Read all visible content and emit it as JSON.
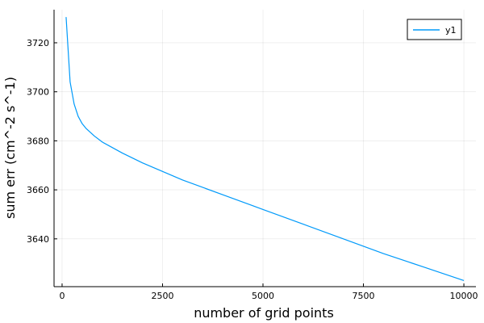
{
  "chart_data": {
    "type": "line",
    "title": "",
    "xlabel": "number of grid points",
    "ylabel": "sum err (cm^-2 s^-1)",
    "xlim": [
      -200,
      10300
    ],
    "ylim": [
      3620.5,
      3733.5
    ],
    "xticks": [
      0,
      2500,
      5000,
      7500,
      10000
    ],
    "xtick_labels": [
      "0",
      "2500",
      "5000",
      "7500",
      "10000"
    ],
    "yticks": [
      3640,
      3660,
      3680,
      3700,
      3720
    ],
    "ytick_labels": [
      "3640",
      "3660",
      "3680",
      "3700",
      "3720"
    ],
    "grid": true,
    "legend": {
      "position": "top-right"
    },
    "series": [
      {
        "name": "y1",
        "color": "#009AFA",
        "x": [
          100,
          200,
          300,
          400,
          500,
          600,
          800,
          1000,
          1500,
          2000,
          2500,
          3000,
          4000,
          5000,
          6000,
          7000,
          8000,
          9000,
          10000
        ],
        "y": [
          3730.5,
          3704,
          3695,
          3690,
          3687,
          3685,
          3682,
          3679.5,
          3675,
          3671,
          3667.5,
          3664,
          3658,
          3652,
          3646,
          3640,
          3634,
          3628.5,
          3623
        ]
      }
    ]
  }
}
